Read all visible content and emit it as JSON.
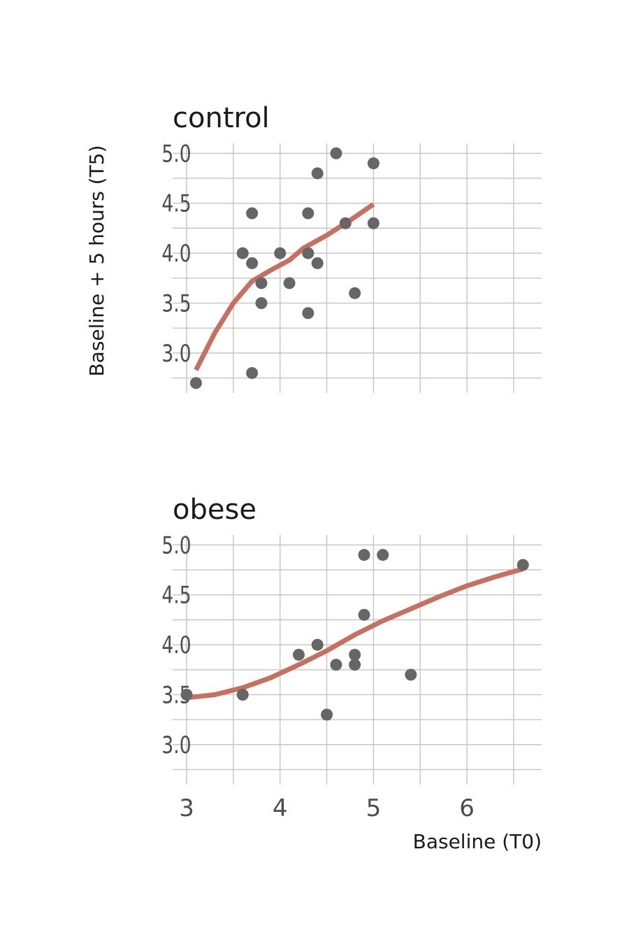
{
  "chart_data": {
    "type": "scatter",
    "xlabel": "Baseline (T0)",
    "ylabel": "Baseline + 5 hours (T5)",
    "xlim": [
      2.85,
      6.8
    ],
    "ylim": [
      2.6,
      5.1
    ],
    "x_ticks": [
      3,
      4,
      5,
      6
    ],
    "x_tick_labels": [
      "3",
      "4",
      "5",
      "6"
    ],
    "y_ticks": [
      3.0,
      3.5,
      4.0,
      4.5,
      5.0
    ],
    "y_tick_labels": [
      "3.0",
      "3.5",
      "4.0",
      "4.5",
      "5.0"
    ],
    "grid": true,
    "point_color": "#666666",
    "smooth_color": "#c87060",
    "panels": [
      {
        "title": "control",
        "points": [
          {
            "x": 3.1,
            "y": 2.7
          },
          {
            "x": 3.7,
            "y": 2.8
          },
          {
            "x": 3.6,
            "y": 4.0
          },
          {
            "x": 3.7,
            "y": 3.9
          },
          {
            "x": 3.7,
            "y": 4.4
          },
          {
            "x": 3.8,
            "y": 3.7
          },
          {
            "x": 3.8,
            "y": 3.5
          },
          {
            "x": 4.0,
            "y": 4.0
          },
          {
            "x": 4.1,
            "y": 3.7
          },
          {
            "x": 4.3,
            "y": 4.4
          },
          {
            "x": 4.3,
            "y": 4.0
          },
          {
            "x": 4.3,
            "y": 3.4
          },
          {
            "x": 4.4,
            "y": 3.9
          },
          {
            "x": 4.4,
            "y": 4.8
          },
          {
            "x": 4.6,
            "y": 5.0
          },
          {
            "x": 4.7,
            "y": 4.3
          },
          {
            "x": 4.8,
            "y": 3.6
          },
          {
            "x": 5.0,
            "y": 4.9
          },
          {
            "x": 5.0,
            "y": 4.3
          }
        ],
        "smooth": [
          {
            "x": 3.1,
            "y": 2.83
          },
          {
            "x": 3.3,
            "y": 3.2
          },
          {
            "x": 3.5,
            "y": 3.5
          },
          {
            "x": 3.7,
            "y": 3.72
          },
          {
            "x": 3.9,
            "y": 3.83
          },
          {
            "x": 4.1,
            "y": 3.93
          },
          {
            "x": 4.25,
            "y": 4.05
          },
          {
            "x": 4.5,
            "y": 4.18
          },
          {
            "x": 4.75,
            "y": 4.33
          },
          {
            "x": 5.0,
            "y": 4.49
          }
        ]
      },
      {
        "title": "obese",
        "points": [
          {
            "x": 3.0,
            "y": 3.5
          },
          {
            "x": 3.6,
            "y": 3.5
          },
          {
            "x": 4.2,
            "y": 3.9
          },
          {
            "x": 4.4,
            "y": 4.0
          },
          {
            "x": 4.5,
            "y": 3.3
          },
          {
            "x": 4.6,
            "y": 3.8
          },
          {
            "x": 4.8,
            "y": 3.9
          },
          {
            "x": 4.8,
            "y": 3.8
          },
          {
            "x": 4.9,
            "y": 4.9
          },
          {
            "x": 4.9,
            "y": 4.3
          },
          {
            "x": 5.1,
            "y": 4.9
          },
          {
            "x": 5.4,
            "y": 3.7
          },
          {
            "x": 6.6,
            "y": 4.8
          }
        ],
        "smooth": [
          {
            "x": 3.0,
            "y": 3.47
          },
          {
            "x": 3.3,
            "y": 3.5
          },
          {
            "x": 3.6,
            "y": 3.57
          },
          {
            "x": 3.9,
            "y": 3.67
          },
          {
            "x": 4.2,
            "y": 3.8
          },
          {
            "x": 4.5,
            "y": 3.94
          },
          {
            "x": 4.8,
            "y": 4.1
          },
          {
            "x": 5.1,
            "y": 4.24
          },
          {
            "x": 5.4,
            "y": 4.36
          },
          {
            "x": 5.7,
            "y": 4.48
          },
          {
            "x": 6.0,
            "y": 4.59
          },
          {
            "x": 6.3,
            "y": 4.68
          },
          {
            "x": 6.6,
            "y": 4.76
          }
        ]
      }
    ]
  }
}
